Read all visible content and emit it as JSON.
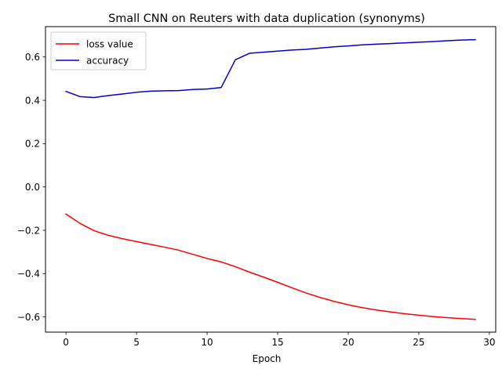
{
  "chart_data": {
    "type": "line",
    "title": "Small CNN on Reuters with data duplication (synonyms)",
    "xlabel": "Epoch",
    "ylabel": "",
    "xlim": [
      -1.45,
      30.45
    ],
    "ylim": [
      -0.67,
      0.74
    ],
    "xticks": [
      0,
      5,
      10,
      15,
      20,
      25,
      30
    ],
    "yticks": [
      -0.6,
      -0.4,
      -0.2,
      0.0,
      0.2,
      0.4,
      0.6
    ],
    "ytick_labels": [
      "−0.6",
      "−0.4",
      "−0.2",
      "0.0",
      "0.2",
      "0.4",
      "0.6"
    ],
    "grid": false,
    "legend": "upper-left",
    "x": [
      0,
      1,
      2,
      3,
      4,
      5,
      6,
      7,
      8,
      9,
      10,
      11,
      12,
      13,
      14,
      15,
      16,
      17,
      18,
      19,
      20,
      21,
      22,
      23,
      24,
      25,
      26,
      27,
      28,
      29
    ],
    "series": [
      {
        "name": "loss value",
        "color": "#ff0000",
        "values": [
          -0.125,
          -0.168,
          -0.202,
          -0.223,
          -0.239,
          -0.252,
          -0.265,
          -0.278,
          -0.292,
          -0.311,
          -0.33,
          -0.346,
          -0.368,
          -0.393,
          -0.416,
          -0.44,
          -0.465,
          -0.489,
          -0.51,
          -0.528,
          -0.544,
          -0.557,
          -0.568,
          -0.577,
          -0.585,
          -0.592,
          -0.598,
          -0.603,
          -0.607,
          -0.611
        ]
      },
      {
        "name": "accuracy",
        "color": "#0000cc",
        "values": [
          0.441,
          0.417,
          0.413,
          0.422,
          0.429,
          0.437,
          0.442,
          0.444,
          0.445,
          0.45,
          0.452,
          0.459,
          0.587,
          0.617,
          0.622,
          0.627,
          0.632,
          0.635,
          0.641,
          0.647,
          0.651,
          0.656,
          0.659,
          0.662,
          0.665,
          0.668,
          0.671,
          0.675,
          0.678,
          0.68
        ]
      }
    ]
  }
}
